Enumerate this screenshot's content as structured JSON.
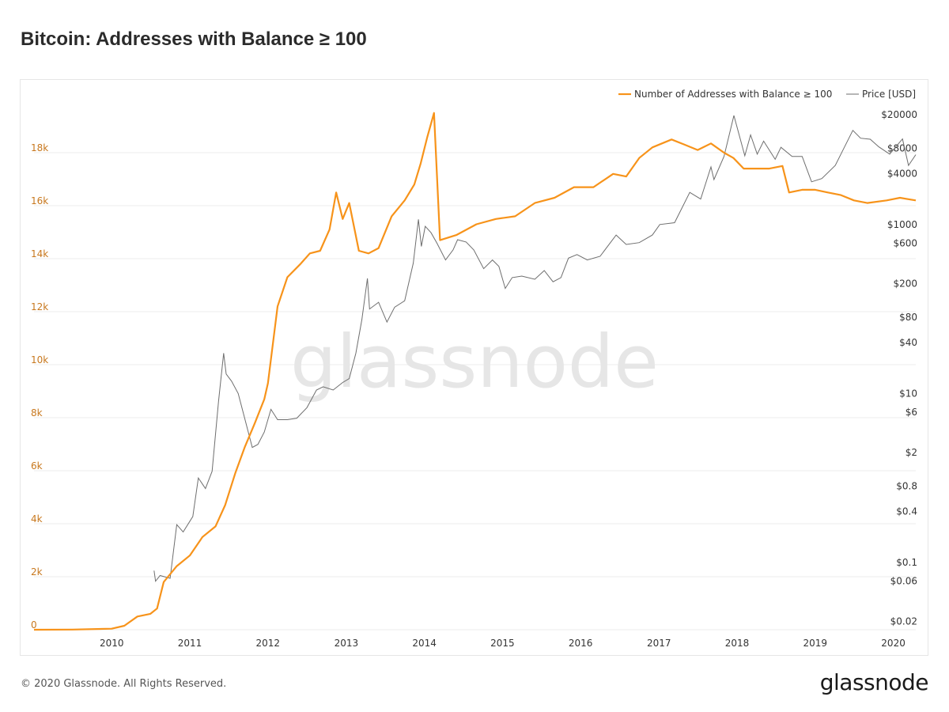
{
  "page": {
    "title": "Bitcoin: Addresses with Balance ≥ 100",
    "watermark": "glassnode",
    "copyright": "© 2020 Glassnode. All Rights Reserved.",
    "logo": "glassnode"
  },
  "colors": {
    "addresses": "#f7931a",
    "price": "#6e6e6e",
    "left_axis_text": "#c8781e",
    "right_axis_text": "#333333",
    "grid": "#ececec",
    "watermark": "#e6e6e6"
  },
  "chart_data": {
    "type": "line",
    "title": "Bitcoin: Addresses with Balance ≥ 100",
    "legend": {
      "placement": "top-right",
      "items": [
        "Number of Addresses with Balance ≥ 100",
        "Price [USD]"
      ]
    },
    "grid": "horizontal",
    "x_axis": {
      "ticks": [
        "2010",
        "2011",
        "2012",
        "2013",
        "2014",
        "2015",
        "2016",
        "2017",
        "2018",
        "2019",
        "2020"
      ],
      "range": [
        "2009-01-03",
        "2020-04-15"
      ]
    },
    "y_left": {
      "ticks": [
        "0",
        "2k",
        "4k",
        "6k",
        "8k",
        "10k",
        "12k",
        "14k",
        "16k",
        "18k"
      ],
      "tick_values": [
        0,
        2000,
        4000,
        6000,
        8000,
        10000,
        12000,
        14000,
        16000,
        18000
      ],
      "range": [
        0,
        20000
      ]
    },
    "y_right": {
      "scale": "log",
      "ticks": [
        "$0.02",
        "$0.06",
        "$0.1",
        "$0.4",
        "$0.8",
        "$2",
        "$6",
        "$10",
        "$40",
        "$80",
        "$200",
        "$600",
        "$1000",
        "$4000",
        "$8000",
        "$20000"
      ],
      "tick_values": [
        0.02,
        0.06,
        0.1,
        0.4,
        0.8,
        2,
        6,
        10,
        40,
        80,
        200,
        600,
        1000,
        4000,
        8000,
        20000
      ],
      "range": [
        0.016,
        30000
      ]
    },
    "series": [
      {
        "name": "Number of Addresses with Balance ≥ 100",
        "axis": "left",
        "points": [
          [
            "2009-01-03",
            0
          ],
          [
            "2009-07-01",
            5
          ],
          [
            "2010-01-01",
            40
          ],
          [
            "2010-03-01",
            150
          ],
          [
            "2010-05-01",
            500
          ],
          [
            "2010-07-01",
            600
          ],
          [
            "2010-08-01",
            800
          ],
          [
            "2010-09-01",
            1800
          ],
          [
            "2010-11-01",
            2400
          ],
          [
            "2011-01-01",
            2800
          ],
          [
            "2011-03-01",
            3500
          ],
          [
            "2011-05-01",
            3900
          ],
          [
            "2011-06-15",
            4700
          ],
          [
            "2011-08-01",
            5900
          ],
          [
            "2011-09-15",
            6900
          ],
          [
            "2011-11-01",
            7800
          ],
          [
            "2011-12-15",
            8700
          ],
          [
            "2012-01-01",
            9300
          ],
          [
            "2012-02-15",
            12200
          ],
          [
            "2012-04-01",
            13300
          ],
          [
            "2012-06-01",
            13800
          ],
          [
            "2012-07-15",
            14200
          ],
          [
            "2012-09-01",
            14300
          ],
          [
            "2012-10-15",
            15100
          ],
          [
            "2012-11-15",
            16500
          ],
          [
            "2012-12-15",
            15500
          ],
          [
            "2013-01-15",
            16100
          ],
          [
            "2013-03-01",
            14300
          ],
          [
            "2013-04-15",
            14200
          ],
          [
            "2013-06-01",
            14400
          ],
          [
            "2013-08-01",
            15600
          ],
          [
            "2013-10-01",
            16200
          ],
          [
            "2013-11-15",
            16800
          ],
          [
            "2013-12-15",
            17600
          ],
          [
            "2014-01-15",
            18600
          ],
          [
            "2014-02-15",
            19500
          ],
          [
            "2014-03-15",
            14700
          ],
          [
            "2014-06-01",
            14900
          ],
          [
            "2014-09-01",
            15300
          ],
          [
            "2014-12-01",
            15500
          ],
          [
            "2015-03-01",
            15600
          ],
          [
            "2015-06-01",
            16100
          ],
          [
            "2015-09-01",
            16300
          ],
          [
            "2015-12-01",
            16700
          ],
          [
            "2016-03-01",
            16700
          ],
          [
            "2016-06-01",
            17200
          ],
          [
            "2016-08-01",
            17100
          ],
          [
            "2016-10-01",
            17800
          ],
          [
            "2016-12-01",
            18200
          ],
          [
            "2017-03-01",
            18500
          ],
          [
            "2017-05-01",
            18300
          ],
          [
            "2017-07-01",
            18100
          ],
          [
            "2017-09-01",
            18350
          ],
          [
            "2017-11-01",
            18000
          ],
          [
            "2017-12-15",
            17800
          ],
          [
            "2018-02-01",
            17400
          ],
          [
            "2018-04-01",
            17400
          ],
          [
            "2018-06-01",
            17400
          ],
          [
            "2018-08-01",
            17500
          ],
          [
            "2018-09-01",
            16500
          ],
          [
            "2018-11-01",
            16600
          ],
          [
            "2019-01-01",
            16600
          ],
          [
            "2019-03-01",
            16500
          ],
          [
            "2019-05-01",
            16400
          ],
          [
            "2019-07-01",
            16200
          ],
          [
            "2019-09-01",
            16100
          ],
          [
            "2019-12-01",
            16200
          ],
          [
            "2020-02-01",
            16300
          ],
          [
            "2020-04-15",
            16200
          ]
        ]
      },
      {
        "name": "Price [USD]",
        "axis": "right",
        "points": [
          [
            "2010-07-18",
            0.08
          ],
          [
            "2010-07-25",
            0.06
          ],
          [
            "2010-08-15",
            0.07
          ],
          [
            "2010-10-01",
            0.065
          ],
          [
            "2010-11-01",
            0.28
          ],
          [
            "2010-12-01",
            0.23
          ],
          [
            "2011-01-15",
            0.35
          ],
          [
            "2011-02-10",
            1.0
          ],
          [
            "2011-03-15",
            0.75
          ],
          [
            "2011-04-15",
            1.2
          ],
          [
            "2011-05-15",
            8
          ],
          [
            "2011-06-08",
            30
          ],
          [
            "2011-06-20",
            17
          ],
          [
            "2011-07-15",
            14
          ],
          [
            "2011-08-15",
            10
          ],
          [
            "2011-09-15",
            5
          ],
          [
            "2011-10-20",
            2.3
          ],
          [
            "2011-11-15",
            2.5
          ],
          [
            "2011-12-15",
            3.5
          ],
          [
            "2012-01-15",
            6.5
          ],
          [
            "2012-02-15",
            4.9
          ],
          [
            "2012-04-01",
            4.9
          ],
          [
            "2012-05-15",
            5.1
          ],
          [
            "2012-07-01",
            6.8
          ],
          [
            "2012-08-15",
            11
          ],
          [
            "2012-09-15",
            12
          ],
          [
            "2012-11-01",
            11
          ],
          [
            "2012-12-15",
            13.5
          ],
          [
            "2013-01-15",
            15
          ],
          [
            "2013-02-15",
            30
          ],
          [
            "2013-03-15",
            75
          ],
          [
            "2013-04-10",
            230
          ],
          [
            "2013-04-20",
            100
          ],
          [
            "2013-06-01",
            120
          ],
          [
            "2013-07-10",
            70
          ],
          [
            "2013-08-15",
            105
          ],
          [
            "2013-10-01",
            125
          ],
          [
            "2013-11-10",
            350
          ],
          [
            "2013-12-04",
            1150
          ],
          [
            "2013-12-18",
            550
          ],
          [
            "2014-01-05",
            950
          ],
          [
            "2014-02-01",
            800
          ],
          [
            "2014-03-01",
            600
          ],
          [
            "2014-04-10",
            380
          ],
          [
            "2014-05-15",
            500
          ],
          [
            "2014-06-05",
            660
          ],
          [
            "2014-07-15",
            620
          ],
          [
            "2014-08-20",
            500
          ],
          [
            "2014-10-05",
            300
          ],
          [
            "2014-11-15",
            380
          ],
          [
            "2014-12-15",
            320
          ],
          [
            "2015-01-14",
            175
          ],
          [
            "2015-02-15",
            235
          ],
          [
            "2015-04-01",
            245
          ],
          [
            "2015-06-01",
            225
          ],
          [
            "2015-07-15",
            285
          ],
          [
            "2015-08-25",
            210
          ],
          [
            "2015-10-01",
            235
          ],
          [
            "2015-11-05",
            400
          ],
          [
            "2015-12-15",
            440
          ],
          [
            "2016-02-01",
            380
          ],
          [
            "2016-04-01",
            420
          ],
          [
            "2016-06-15",
            750
          ],
          [
            "2016-08-01",
            580
          ],
          [
            "2016-10-01",
            610
          ],
          [
            "2016-12-01",
            750
          ],
          [
            "2017-01-05",
            1000
          ],
          [
            "2017-03-15",
            1050
          ],
          [
            "2017-05-25",
            2400
          ],
          [
            "2017-07-15",
            2000
          ],
          [
            "2017-09-01",
            4800
          ],
          [
            "2017-09-15",
            3400
          ],
          [
            "2017-11-01",
            6400
          ],
          [
            "2017-12-17",
            19500
          ],
          [
            "2018-02-06",
            6500
          ],
          [
            "2018-03-05",
            11500
          ],
          [
            "2018-04-05",
            6800
          ],
          [
            "2018-05-05",
            9700
          ],
          [
            "2018-06-28",
            5900
          ],
          [
            "2018-07-25",
            8200
          ],
          [
            "2018-09-15",
            6400
          ],
          [
            "2018-11-01",
            6400
          ],
          [
            "2018-12-15",
            3200
          ],
          [
            "2019-02-01",
            3500
          ],
          [
            "2019-04-05",
            5000
          ],
          [
            "2019-05-15",
            8000
          ],
          [
            "2019-06-26",
            13000
          ],
          [
            "2019-08-01",
            10500
          ],
          [
            "2019-09-15",
            10200
          ],
          [
            "2019-10-25",
            8300
          ],
          [
            "2019-12-15",
            6800
          ],
          [
            "2020-02-13",
            10300
          ],
          [
            "2020-03-12",
            5000
          ],
          [
            "2020-04-15",
            6700
          ]
        ]
      }
    ]
  }
}
